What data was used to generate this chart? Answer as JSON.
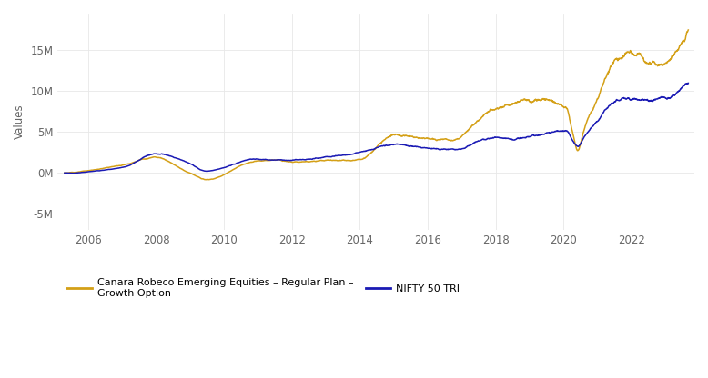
{
  "ylabel": "Values",
  "background_color": "#ffffff",
  "grid_color": "#e8e8e8",
  "canara_color": "#D4A017",
  "nifty_color": "#1a1ab4",
  "x_ticks": [
    2006,
    2008,
    2010,
    2012,
    2014,
    2016,
    2018,
    2020,
    2022
  ],
  "y_ticks": [
    -5000000,
    0,
    5000000,
    10000000,
    15000000
  ],
  "y_tick_labels": [
    "-5M",
    "0M",
    "5M",
    "10M",
    "15M"
  ],
  "ylim": [
    -7000000,
    19500000
  ],
  "xlim": [
    2005.1,
    2023.85
  ],
  "legend_canara": "Canara Robeco Emerging Equities – Regular Plan –\nGrowth Option",
  "legend_nifty": "NIFTY 50 TRI",
  "line_width": 1.1
}
